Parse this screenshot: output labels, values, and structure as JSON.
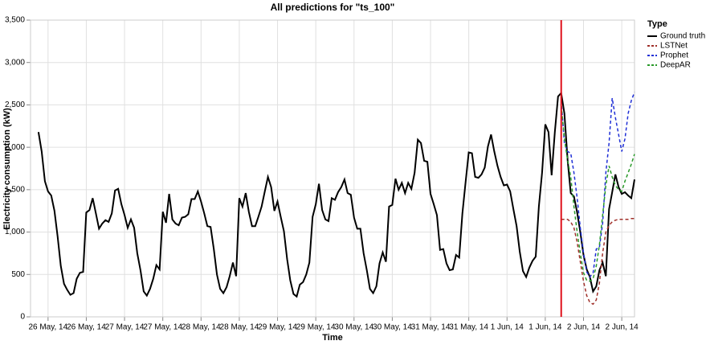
{
  "chart_data": {
    "type": "line",
    "title": "All predictions for \"ts_100\"",
    "x_label": "Time",
    "y_label": "Electricity consumption (kW)",
    "legend_title": "Type",
    "legend": "right",
    "grid": true,
    "xlim": [
      -2.5,
      187
    ],
    "ylim": [
      0,
      3500
    ],
    "yticks": [
      0,
      500,
      {
        "value": 1000,
        "label": "1,000"
      },
      {
        "value": 1500,
        "label": "1,500"
      },
      {
        "value": 2000,
        "label": "2,000"
      },
      {
        "value": 2500,
        "label": "2,500"
      },
      {
        "value": 3000,
        "label": "3,000"
      },
      {
        "value": 3500,
        "label": "3,500"
      }
    ],
    "xticks": [
      {
        "value": 3,
        "label": "26 May, 14"
      },
      {
        "value": 15,
        "label": "26 May, 14"
      },
      {
        "value": 27,
        "label": "27 May, 14"
      },
      {
        "value": 39,
        "label": "27 May, 14"
      },
      {
        "value": 51,
        "label": "28 May, 14"
      },
      {
        "value": 63,
        "label": "28 May, 14"
      },
      {
        "value": 75,
        "label": "29 May, 14"
      },
      {
        "value": 87,
        "label": "29 May, 14"
      },
      {
        "value": 99,
        "label": "30 May, 14"
      },
      {
        "value": 111,
        "label": "30 May, 14"
      },
      {
        "value": 123,
        "label": "31 May, 14"
      },
      {
        "value": 135,
        "label": "31 May, 14"
      },
      {
        "value": 147,
        "label": "1 Jun, 14"
      },
      {
        "value": 159,
        "label": "1 Jun, 14"
      },
      {
        "value": 171,
        "label": "2 Jun, 14"
      },
      {
        "value": 183,
        "label": "2 Jun, 14"
      }
    ],
    "vline": {
      "x": 164,
      "color": "#e0101b"
    },
    "series": [
      {
        "name": "Ground truth",
        "color": "#000000",
        "dashed": false,
        "x": [
          0,
          1,
          2,
          3,
          4,
          5,
          6,
          7,
          8,
          9,
          10,
          11,
          12,
          13,
          14,
          15,
          16,
          17,
          18,
          19,
          20,
          21,
          22,
          23,
          24,
          25,
          26,
          27,
          28,
          29,
          30,
          31,
          32,
          33,
          34,
          35,
          36,
          37,
          38,
          39,
          40,
          41,
          42,
          43,
          44,
          45,
          46,
          47,
          48,
          49,
          50,
          51,
          52,
          53,
          54,
          55,
          56,
          57,
          58,
          59,
          60,
          61,
          62,
          63,
          64,
          65,
          66,
          67,
          68,
          69,
          70,
          71,
          72,
          73,
          74,
          75,
          76,
          77,
          78,
          79,
          80,
          81,
          82,
          83,
          84,
          85,
          86,
          87,
          88,
          89,
          90,
          91,
          92,
          93,
          94,
          95,
          96,
          97,
          98,
          99,
          100,
          101,
          102,
          103,
          104,
          105,
          106,
          107,
          108,
          109,
          110,
          111,
          112,
          113,
          114,
          115,
          116,
          117,
          118,
          119,
          120,
          121,
          122,
          123,
          124,
          125,
          126,
          127,
          128,
          129,
          130,
          131,
          132,
          133,
          134,
          135,
          136,
          137,
          138,
          139,
          140,
          141,
          142,
          143,
          144,
          145,
          146,
          147,
          148,
          149,
          150,
          151,
          152,
          153,
          154,
          155,
          156,
          157,
          158,
          159,
          160,
          161,
          162,
          163,
          164,
          165,
          166,
          167,
          168,
          169,
          170,
          171,
          172,
          173,
          174,
          175,
          176,
          177,
          178,
          179,
          180,
          181,
          182,
          183,
          184,
          185,
          186,
          187
        ],
        "values": [
          2180,
          1950,
          1600,
          1480,
          1430,
          1250,
          950,
          600,
          390,
          320,
          260,
          280,
          450,
          520,
          530,
          1230,
          1260,
          1400,
          1220,
          1040,
          1100,
          1140,
          1120,
          1220,
          1490,
          1510,
          1330,
          1200,
          1050,
          1150,
          1050,
          750,
          550,
          300,
          250,
          330,
          450,
          610,
          560,
          1240,
          1110,
          1450,
          1150,
          1100,
          1080,
          1170,
          1180,
          1210,
          1390,
          1390,
          1480,
          1360,
          1220,
          1070,
          1060,
          800,
          500,
          330,
          280,
          350,
          480,
          640,
          480,
          1400,
          1300,
          1460,
          1240,
          1070,
          1070,
          1180,
          1300,
          1480,
          1650,
          1530,
          1250,
          1360,
          1180,
          1010,
          680,
          430,
          270,
          240,
          380,
          410,
          500,
          640,
          1180,
          1330,
          1570,
          1260,
          1150,
          1130,
          1400,
          1380,
          1470,
          1530,
          1620,
          1460,
          1440,
          1170,
          1040,
          1040,
          750,
          550,
          330,
          280,
          360,
          630,
          760,
          650,
          1300,
          1320,
          1630,
          1500,
          1580,
          1460,
          1580,
          1510,
          1700,
          2090,
          2050,
          1840,
          1830,
          1450,
          1330,
          1200,
          790,
          800,
          630,
          550,
          560,
          730,
          700,
          1220,
          1590,
          1940,
          1930,
          1650,
          1640,
          1680,
          1760,
          2010,
          2150,
          1950,
          1780,
          1650,
          1550,
          1560,
          1480,
          1270,
          1070,
          770,
          540,
          470,
          580,
          660,
          710,
          1300,
          1700,
          2270,
          2180,
          1670,
          2180,
          2600,
          2640,
          2400,
          1850,
          1460,
          1420,
          1230,
          1000,
          730,
          560,
          470,
          300,
          360,
          550,
          640,
          480,
          1270,
          1470,
          1680,
          1530,
          1450,
          1470,
          1430,
          1400,
          1620
        ]
      },
      {
        "name": "LSTNet",
        "color": "#a0302a",
        "dashed": true,
        "x": [
          164,
          165,
          166,
          167,
          168,
          169,
          170,
          171,
          172,
          173,
          174,
          175,
          176,
          177,
          178,
          179,
          180,
          181,
          182,
          183,
          184,
          185,
          186,
          187
        ],
        "values": [
          1150,
          1150,
          1150,
          1120,
          1050,
          880,
          650,
          420,
          250,
          170,
          150,
          200,
          400,
          750,
          1000,
          1080,
          1120,
          1140,
          1150,
          1150,
          1150,
          1150,
          1160,
          1160
        ]
      },
      {
        "name": "Prophet",
        "color": "#1f2fd6",
        "dashed": true,
        "x": [
          164,
          165,
          166,
          167,
          168,
          169,
          170,
          171,
          172,
          173,
          174,
          175,
          176,
          177,
          178,
          179,
          180,
          181,
          182,
          183,
          184,
          185,
          186,
          187
        ],
        "values": [
          2550,
          2050,
          1950,
          1930,
          1700,
          1400,
          1050,
          750,
          530,
          470,
          520,
          800,
          820,
          1100,
          1700,
          2050,
          2580,
          2350,
          2150,
          1950,
          2100,
          2400,
          2550,
          2650
        ]
      },
      {
        "name": "DeepAR",
        "color": "#2a9a2a",
        "dashed": true,
        "x": [
          164,
          165,
          166,
          167,
          168,
          169,
          170,
          171,
          172,
          173,
          174,
          175,
          176,
          177,
          178,
          179,
          180,
          181,
          182,
          183,
          184,
          185,
          186,
          187
        ],
        "values": [
          2500,
          2100,
          1850,
          1650,
          1300,
          1000,
          750,
          520,
          430,
          420,
          450,
          600,
          850,
          1200,
          1550,
          1780,
          1650,
          1550,
          1500,
          1480,
          1600,
          1700,
          1800,
          1920
        ]
      }
    ]
  }
}
